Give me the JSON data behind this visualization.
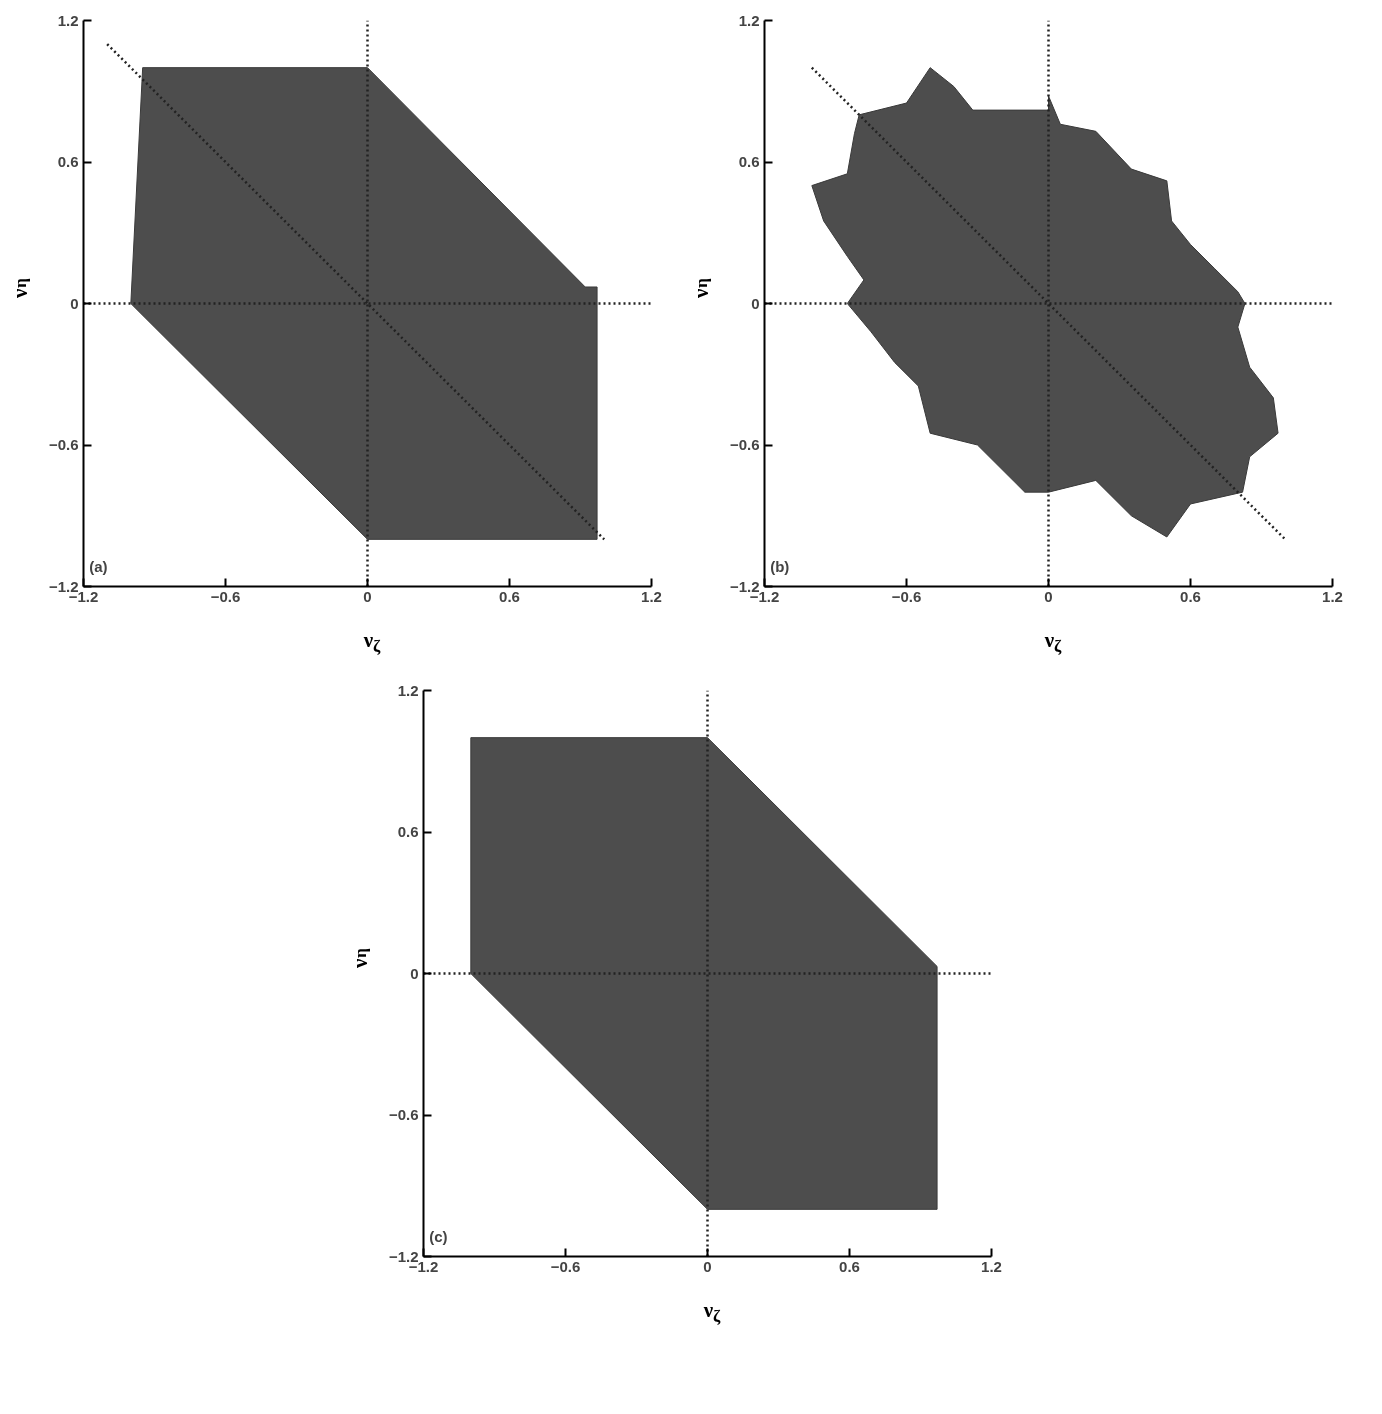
{
  "chart_data": [
    {
      "type": "area",
      "xlabel": "ν$_{ζ}$",
      "ylabel": "ν$_{η}$",
      "xlim": [
        -1.2,
        1.2
      ],
      "ylim": [
        -1.2,
        1.2
      ],
      "xticks": [
        -1.2,
        -0.6,
        0,
        0.6,
        1.2
      ],
      "yticks": [
        -1.2,
        -0.6,
        0,
        0.6,
        1.2
      ],
      "grid": false,
      "annotations": [
        "(a)"
      ],
      "series": [
        {
          "type": "line",
          "color": "#222222",
          "line_style": "dotted",
          "x": [
            0,
            0
          ],
          "values": [
            -1.2,
            1.2
          ]
        },
        {
          "type": "line",
          "color": "#222222",
          "line_style": "dotted",
          "x": [
            -1.2,
            1.2
          ],
          "values": [
            0,
            0
          ]
        },
        {
          "color": "#3a3a3a",
          "x": [
            -1.0,
            -0.95,
            0.0,
            0.92,
            0.97,
            0.97,
            0.0,
            -1.0
          ],
          "values": [
            0.0,
            1.0,
            1.0,
            0.07,
            0.07,
            -1.0,
            -1.0,
            0.0
          ]
        },
        {
          "type": "line",
          "color": "#222222",
          "line_style": "dotted",
          "x": [
            -1.1,
            1.0
          ],
          "values": [
            1.1,
            -1.0
          ]
        }
      ]
    },
    {
      "type": "area",
      "xlabel": "ν$_{ζ}$",
      "ylabel": "ν$_{η}$",
      "xlim": [
        -1.2,
        1.2
      ],
      "ylim": [
        -1.2,
        1.2
      ],
      "xticks": [
        -1.2,
        -0.6,
        0,
        0.6,
        1.2
      ],
      "yticks": [
        -1.2,
        -0.6,
        0,
        0.6,
        1.2
      ],
      "grid": false,
      "annotations": [
        "(b)"
      ],
      "series": [
        {
          "type": "line",
          "color": "#222222",
          "line_style": "dotted",
          "x": [
            0,
            0
          ],
          "values": [
            -1.2,
            1.2
          ]
        },
        {
          "type": "line",
          "color": "#222222",
          "line_style": "dotted",
          "x": [
            -1.2,
            1.2
          ],
          "values": [
            0,
            0
          ]
        },
        {
          "color": "#3a3a3a",
          "x": [
            -0.8,
            -0.6,
            -0.5,
            -0.4,
            -0.32,
            0.0,
            0.0,
            0.05,
            0.2,
            0.35,
            0.5,
            0.52,
            0.6,
            0.7,
            0.8,
            0.83,
            0.8,
            0.85,
            0.95,
            0.97,
            0.85,
            0.82,
            0.6,
            0.5,
            0.35,
            0.2,
            0.0,
            -0.1,
            -0.3,
            -0.5,
            -0.55,
            -0.65,
            -0.75,
            -0.85,
            -0.78,
            -0.85,
            -0.95,
            -1.0,
            -0.85,
            -0.82
          ],
          "values": [
            0.8,
            0.85,
            1.0,
            0.92,
            0.82,
            0.82,
            0.88,
            0.76,
            0.73,
            0.57,
            0.52,
            0.35,
            0.25,
            0.15,
            0.05,
            0.0,
            -0.1,
            -0.27,
            -0.4,
            -0.55,
            -0.65,
            -0.8,
            -0.85,
            -0.99,
            -0.9,
            -0.75,
            -0.8,
            -0.8,
            -0.6,
            -0.55,
            -0.35,
            -0.25,
            -0.12,
            0.0,
            0.1,
            0.2,
            0.35,
            0.5,
            0.55,
            0.72
          ]
        },
        {
          "type": "line",
          "color": "#222222",
          "line_style": "dotted",
          "x": [
            -1.0,
            1.0
          ],
          "values": [
            1.0,
            -1.0
          ]
        }
      ]
    },
    {
      "type": "area",
      "xlabel": "ν$_{ζ}$",
      "ylabel": "ν$_{η}$",
      "xlim": [
        -1.2,
        1.2
      ],
      "ylim": [
        -1.2,
        1.2
      ],
      "xticks": [
        -1.2,
        -0.6,
        0,
        0.6,
        1.2
      ],
      "yticks": [
        -1.2,
        -0.6,
        0,
        0.6,
        1.2
      ],
      "grid": false,
      "annotations": [
        "(c)"
      ],
      "series": [
        {
          "type": "line",
          "color": "#222222",
          "line_style": "dotted",
          "x": [
            0,
            0
          ],
          "values": [
            -1.2,
            1.2
          ]
        },
        {
          "type": "line",
          "color": "#222222",
          "line_style": "dotted",
          "x": [
            -1.2,
            1.2
          ],
          "values": [
            0,
            0
          ]
        },
        {
          "color": "#3a3a3a",
          "x": [
            -1.0,
            -1.0,
            0.0,
            0.97,
            0.97,
            0.0,
            -1.0
          ],
          "values": [
            0.0,
            1.0,
            1.0,
            0.03,
            -1.0,
            -1.0,
            0.0
          ]
        }
      ]
    }
  ]
}
